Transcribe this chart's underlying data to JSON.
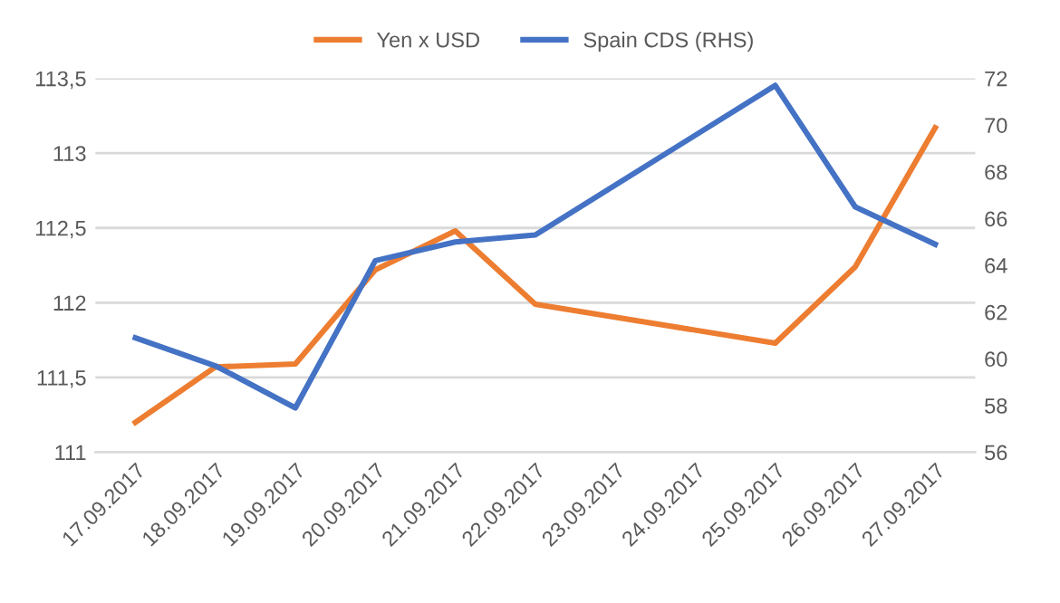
{
  "chart_data": {
    "type": "line",
    "categories": [
      "17.09.2017",
      "18.09.2017",
      "19.09.2017",
      "20.09.2017",
      "21.09.2017",
      "22.09.2017",
      "23.09.2017",
      "24.09.2017",
      "25.09.2017",
      "26.09.2017",
      "27.09.2017"
    ],
    "series": [
      {
        "name": "Yen x USD",
        "color": "#ed7d31",
        "values": [
          111.2,
          111.57,
          111.59,
          112.22,
          112.48,
          111.99,
          null,
          null,
          111.73,
          112.24,
          113.17
        ]
      },
      {
        "name": "Spain CDS (RHS)",
        "color": "#4472c4",
        "axis": "y2",
        "values": [
          60.9,
          59.7,
          57.9,
          64.2,
          65.0,
          65.3,
          null,
          null,
          71.7,
          66.5,
          64.9
        ]
      }
    ],
    "ylim": [
      111,
      113.5
    ],
    "yticks": [
      111,
      {
        "value": 111.5,
        "label": "111,5"
      },
      112,
      {
        "value": 112.5,
        "label": "112,5"
      },
      113,
      {
        "value": 113.5,
        "label": "113,5"
      }
    ],
    "y2lim": [
      56,
      72
    ],
    "y2ticks": [
      56,
      58,
      60,
      62,
      64,
      66,
      68,
      70,
      72
    ],
    "grid": "y",
    "legend": "top",
    "marker": "none",
    "line_style": "solid"
  }
}
